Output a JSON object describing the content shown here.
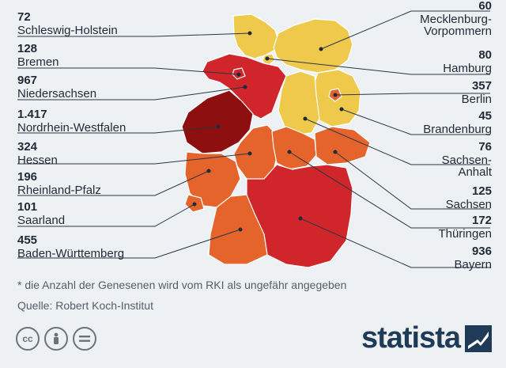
{
  "regions": [
    {
      "key": "sh",
      "value": "72",
      "name": "Schleswig-Holstein",
      "color": "#efc94c"
    },
    {
      "key": "hb",
      "value": "128",
      "name": "Bremen",
      "color": "#d0262b"
    },
    {
      "key": "ni",
      "value": "967",
      "name": "Niedersachsen",
      "color": "#d0262b"
    },
    {
      "key": "nw",
      "value": "1.417",
      "name": "Nordrhein-Westfalen",
      "color": "#8e0f10"
    },
    {
      "key": "he",
      "value": "324",
      "name": "Hessen",
      "color": "#e4642c"
    },
    {
      "key": "rp",
      "value": "196",
      "name": "Rheinland-Pfalz",
      "color": "#e4642c"
    },
    {
      "key": "sl",
      "value": "101",
      "name": "Saarland",
      "color": "#e4642c"
    },
    {
      "key": "bw",
      "value": "455",
      "name": "Baden-Württemberg",
      "color": "#e4642c"
    },
    {
      "key": "mv",
      "value": "60",
      "name": "Mecklenburg-\nVorpommern",
      "color": "#efc94c"
    },
    {
      "key": "hh",
      "value": "80",
      "name": "Hamburg",
      "color": "#efc94c"
    },
    {
      "key": "be",
      "value": "357",
      "name": "Berlin",
      "color": "#e4642c"
    },
    {
      "key": "bb",
      "value": "45",
      "name": "Brandenburg",
      "color": "#efc94c"
    },
    {
      "key": "st",
      "value": "76",
      "name": "Sachsen-\nAnhalt",
      "color": "#efc94c"
    },
    {
      "key": "sn",
      "value": "125",
      "name": "Sachsen",
      "color": "#e4642c"
    },
    {
      "key": "th",
      "value": "172",
      "name": "Thüringen",
      "color": "#e4642c"
    },
    {
      "key": "by",
      "value": "936",
      "name": "Bayern",
      "color": "#d0262b"
    }
  ],
  "note": "* die Anzahl der Genesenen wird vom RKI als ungefähr angegeben",
  "source": "Quelle: Robert Koch-Institut",
  "brand": "statista",
  "icons": [
    "cc-icon",
    "by-person-icon",
    "nd-equals-icon"
  ]
}
